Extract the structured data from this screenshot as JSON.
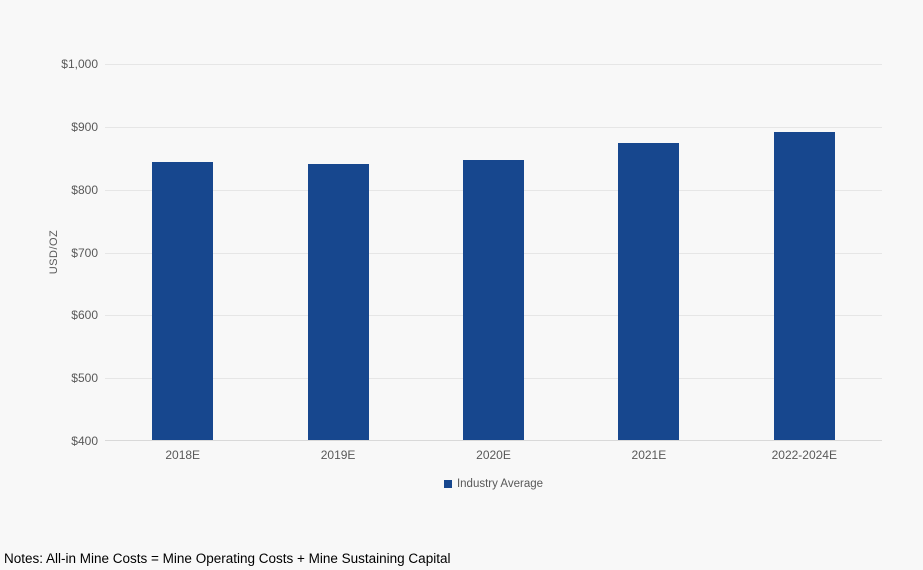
{
  "chart_data": {
    "type": "bar",
    "title": "",
    "categories": [
      "2018E",
      "2019E",
      "2020E",
      "2021E",
      "2022-2024E"
    ],
    "series": [
      {
        "name": "Industry Average",
        "values": [
          842,
          840,
          846,
          873,
          890
        ]
      }
    ],
    "xlabel": "",
    "ylabel": "USD/OZ",
    "ylim": [
      400,
      1000
    ],
    "ytick_interval": 100,
    "ytick_labels": [
      "$400",
      "$500",
      "$600",
      "$700",
      "$800",
      "$900",
      "$1,000"
    ],
    "grid": true,
    "legend_position": "bottom-center",
    "colors": {
      "bar": "#17478e",
      "gridline": "#e6e6e6",
      "axis_line": "#d9d9d9",
      "tick_text": "#595959",
      "background": "#f8f8f8",
      "notes_text": "#000000"
    }
  },
  "legend": {
    "items": [
      {
        "label": "Industry Average",
        "color": "#17478e"
      }
    ]
  },
  "notes": "Notes: All-in Mine Costs = Mine Operating Costs + Mine Sustaining Capital"
}
